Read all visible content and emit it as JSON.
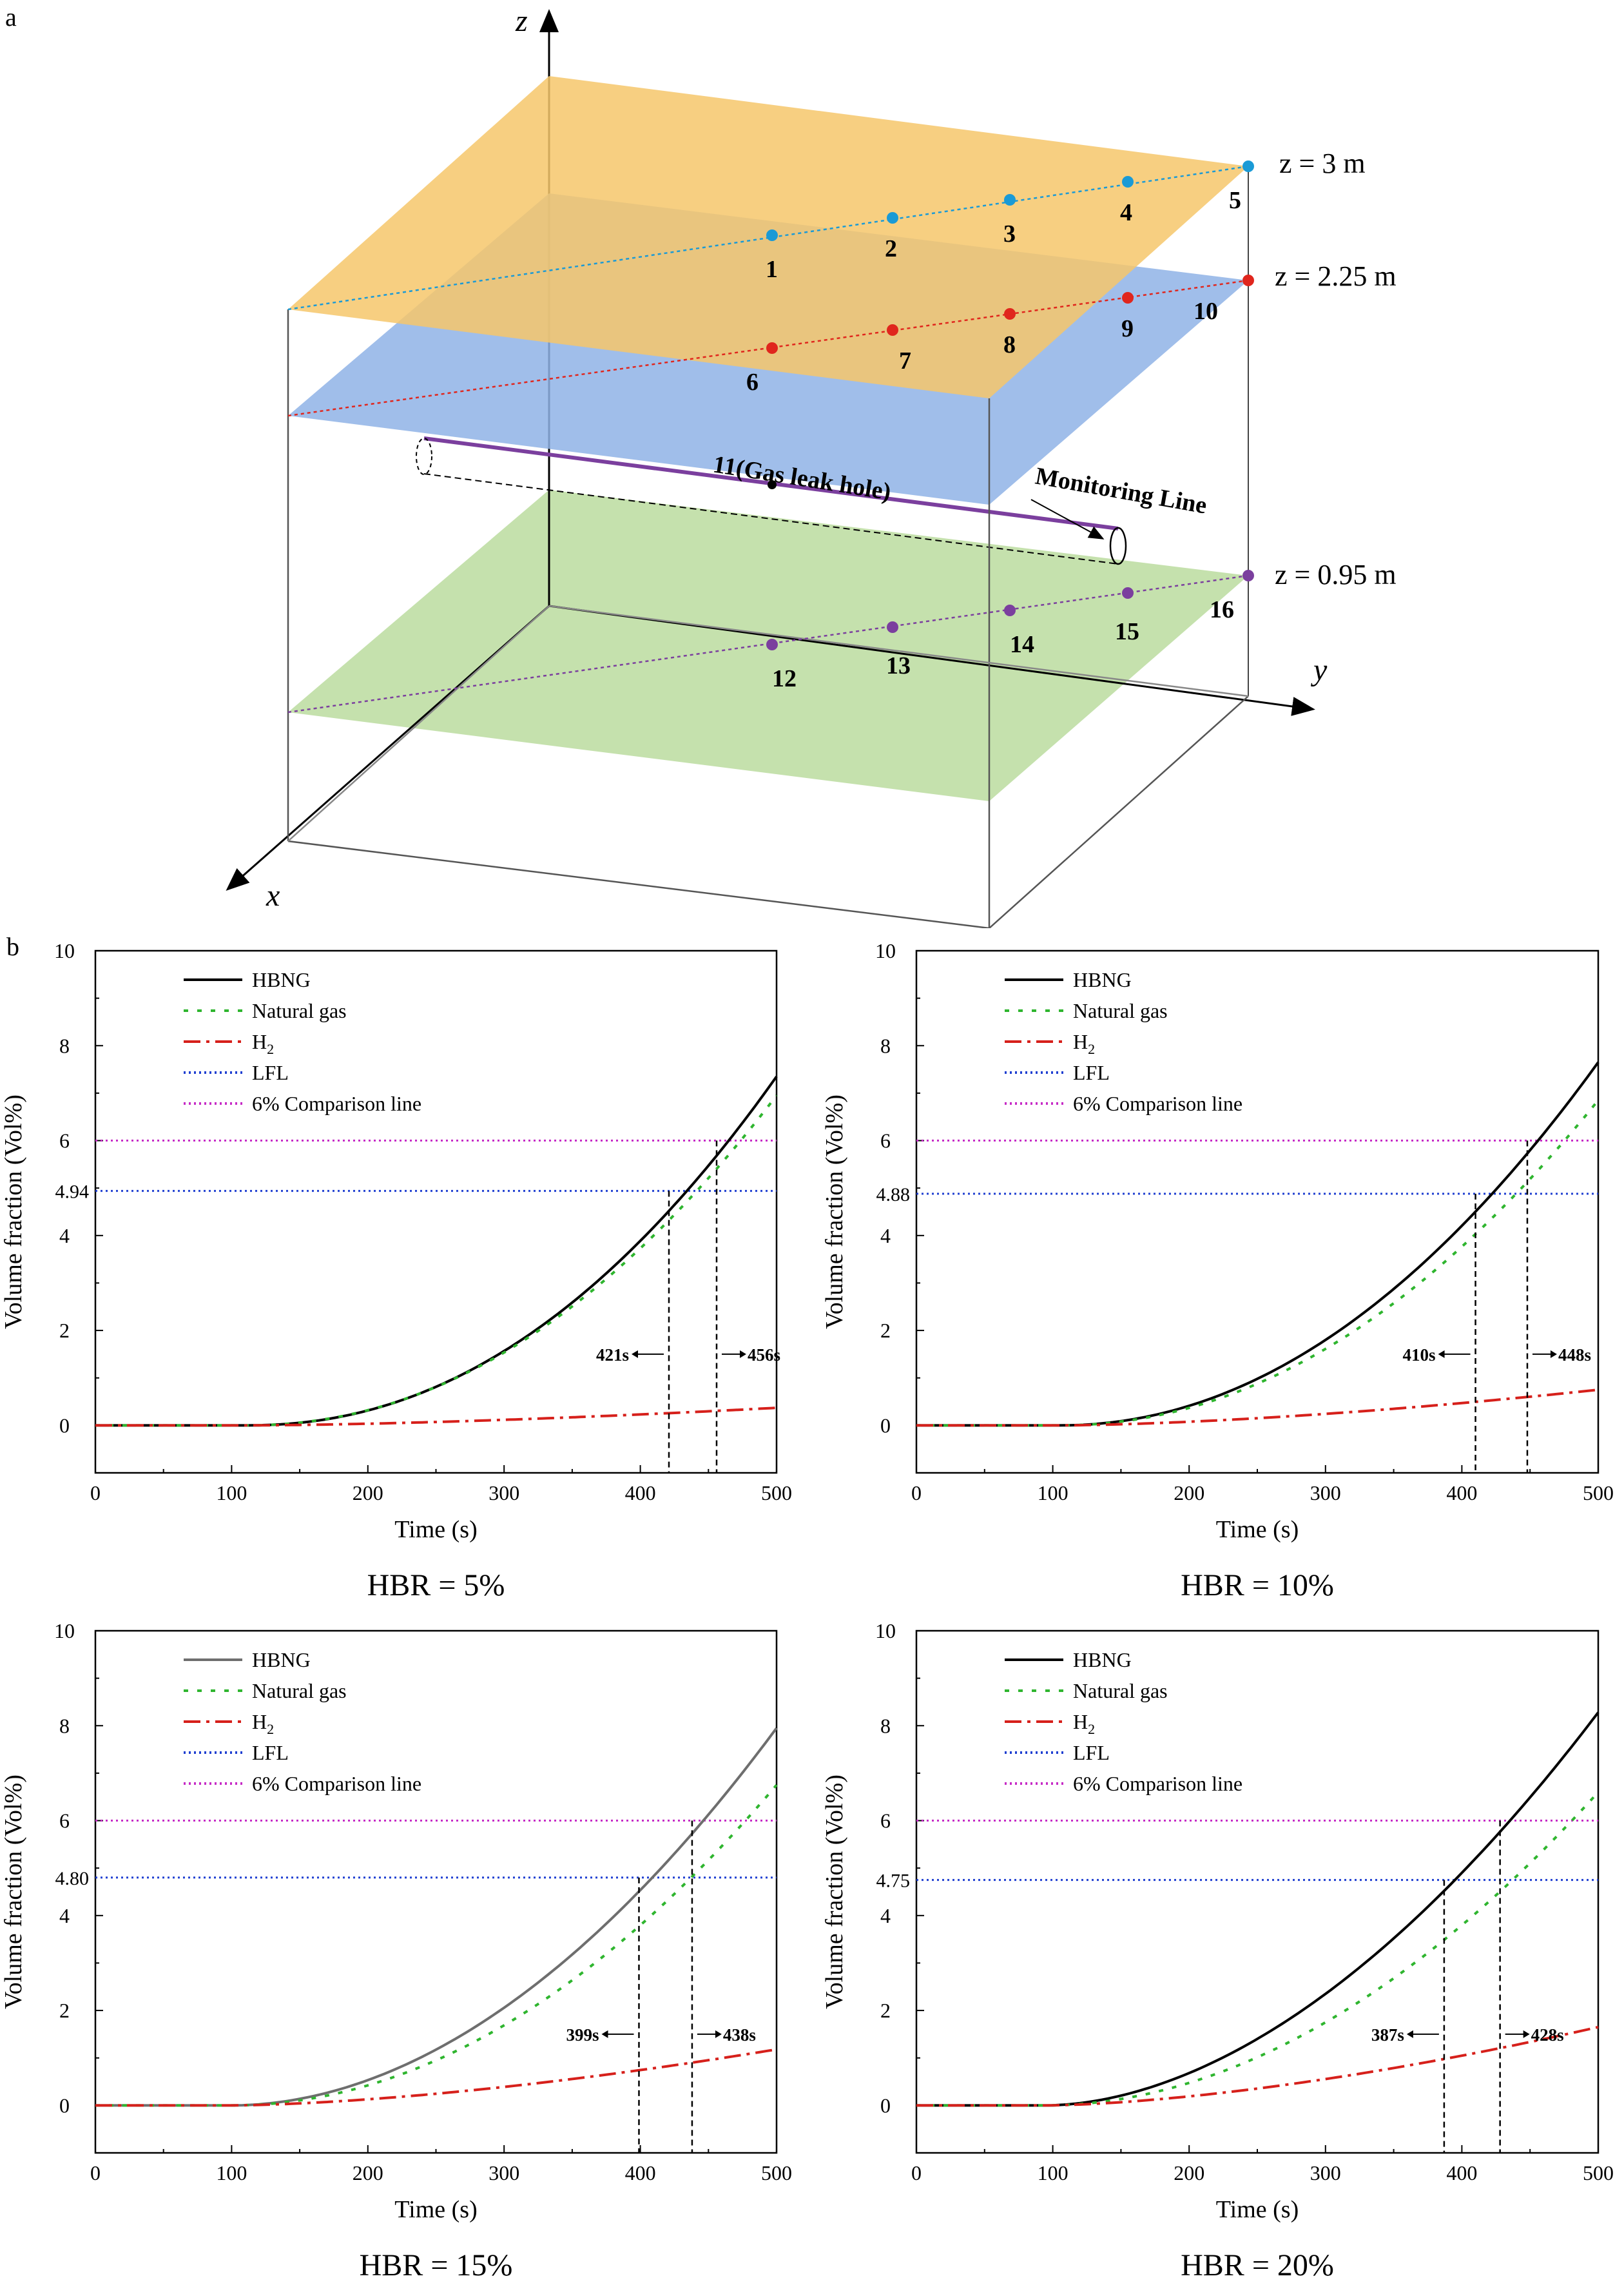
{
  "panel_a": {
    "label": "a",
    "axes": {
      "x": "x",
      "y": "y",
      "z": "z"
    },
    "planes": {
      "top": {
        "label": "z = 3 m",
        "color": "#f6c76b"
      },
      "mid": {
        "label": "z = 2.25 m",
        "color": "#8fb3e6"
      },
      "bottom": {
        "label": "z = 0.95 m",
        "color": "#b7d998"
      }
    },
    "points": {
      "top": [
        "1",
        "2",
        "3",
        "4",
        "5"
      ],
      "mid": [
        "6",
        "7",
        "8",
        "9",
        "10"
      ],
      "bottom": [
        "12",
        "13",
        "14",
        "15",
        "16"
      ]
    },
    "leak_hole": "11(Gas leak hole)",
    "monitoring_line": "Monitoring Line",
    "point_colors": {
      "top": "#1a9ad6",
      "mid": "#e0261d",
      "bottom": "#7b3f9e"
    }
  },
  "panel_b": {
    "label": "b"
  },
  "legend": [
    "HBNG",
    "Natural gas",
    "H",
    "LFL",
    "6% Comparison line"
  ],
  "legend_sub": "2",
  "colors": {
    "hbng": "#000000",
    "natural_gas": "#2fb52f",
    "h2": "#d6201b",
    "lfl": "#1f3fd1",
    "comparison": "#c62bc6"
  },
  "chart_data": [
    {
      "type": "line",
      "title": "HBR = 5%",
      "xlabel": "Time (s)",
      "ylabel": "Volume fraction (Vol%)",
      "xlim": [
        0,
        500
      ],
      "ylim": [
        -1,
        10
      ],
      "x_ticks": [
        0,
        100,
        200,
        300,
        400,
        500
      ],
      "y_ticks": [
        0,
        2,
        4,
        6,
        8,
        10
      ],
      "lfl_value": 4.94,
      "lfl_label": "4.94",
      "comparison_value": 6,
      "t_lfl": 421,
      "t_lfl_label": "421s",
      "t_6": 456,
      "t_6_label": "456s",
      "hbng_color": "#000000",
      "series": [
        {
          "name": "HBNG",
          "end": 7.35,
          "onset": 110,
          "power": 2.15
        },
        {
          "name": "Natural gas",
          "end": 6.95,
          "onset": 110,
          "power": 2.1
        },
        {
          "name": "H2",
          "end": 0.37,
          "onset": 110,
          "power": 1.6
        }
      ]
    },
    {
      "type": "line",
      "title": "HBR = 10%",
      "xlabel": "Time (s)",
      "ylabel": "Volume fraction (Vol%)",
      "xlim": [
        0,
        500
      ],
      "ylim": [
        -1,
        10
      ],
      "x_ticks": [
        0,
        100,
        200,
        300,
        400,
        500
      ],
      "y_ticks": [
        0,
        2,
        4,
        6,
        8,
        10
      ],
      "lfl_value": 4.88,
      "lfl_label": "4.88",
      "comparison_value": 6,
      "t_lfl": 410,
      "t_lfl_label": "410s",
      "t_6": 448,
      "t_6_label": "448s",
      "hbng_color": "#000000",
      "series": [
        {
          "name": "HBNG",
          "end": 7.65,
          "onset": 105,
          "power": 2.05
        },
        {
          "name": "Natural gas",
          "end": 6.85,
          "onset": 105,
          "power": 2.05
        },
        {
          "name": "H2",
          "end": 0.75,
          "onset": 105,
          "power": 1.6
        }
      ]
    },
    {
      "type": "line",
      "title": "HBR = 15%",
      "xlabel": "Time (s)",
      "ylabel": "Volume fraction (Vol%)",
      "xlim": [
        0,
        500
      ],
      "ylim": [
        -1,
        10
      ],
      "x_ticks": [
        0,
        100,
        200,
        300,
        400,
        500
      ],
      "y_ticks": [
        0,
        2,
        4,
        6,
        8,
        10
      ],
      "lfl_value": 4.8,
      "lfl_label": "4.80",
      "comparison_value": 6,
      "t_lfl": 399,
      "t_lfl_label": "399s",
      "t_6": 438,
      "t_6_label": "438s",
      "hbng_color": "#6e6e6e",
      "series": [
        {
          "name": "HBNG",
          "end": 7.95,
          "onset": 100,
          "power": 1.95
        },
        {
          "name": "Natural gas",
          "end": 6.75,
          "onset": 100,
          "power": 2.0
        },
        {
          "name": "H2",
          "end": 1.18,
          "onset": 100,
          "power": 1.6
        }
      ]
    },
    {
      "type": "line",
      "title": "HBR = 20%",
      "xlabel": "Time (s)",
      "ylabel": "Volume fraction (Vol%)",
      "xlim": [
        0,
        500
      ],
      "ylim": [
        -1,
        10
      ],
      "x_ticks": [
        0,
        100,
        200,
        300,
        400,
        500
      ],
      "y_ticks": [
        0,
        2,
        4,
        6,
        8,
        10
      ],
      "lfl_value": 4.75,
      "lfl_label": "4.75",
      "comparison_value": 6,
      "t_lfl": 387,
      "t_lfl_label": "387s",
      "t_6": 428,
      "t_6_label": "428s",
      "hbng_color": "#000000",
      "series": [
        {
          "name": "HBNG",
          "end": 8.28,
          "onset": 95,
          "power": 1.85
        },
        {
          "name": "Natural gas",
          "end": 6.6,
          "onset": 95,
          "power": 1.95
        },
        {
          "name": "H2",
          "end": 1.65,
          "onset": 95,
          "power": 1.6
        }
      ]
    }
  ]
}
